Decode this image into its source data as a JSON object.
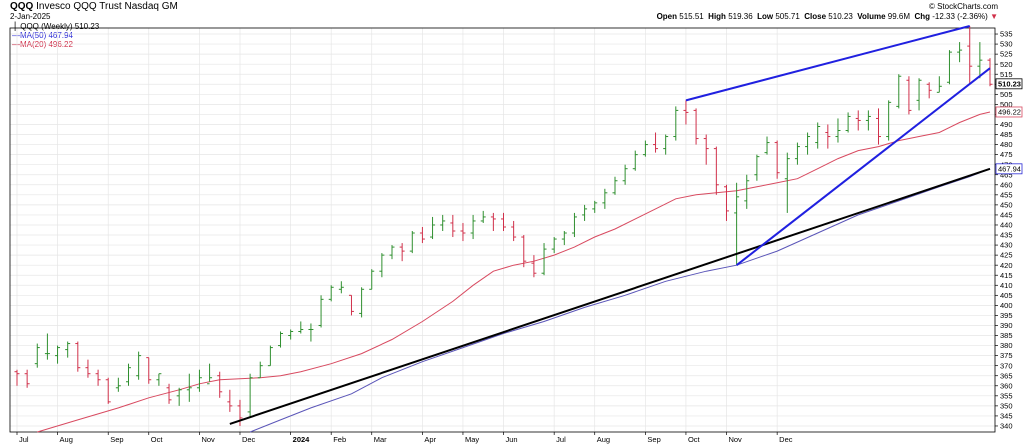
{
  "header": {
    "ticker": "QQQ",
    "name": "Invesco QQQ Trust Nasdaq GM",
    "date": "2-Jan-2025",
    "credit": "© StockCharts.com",
    "ohlc": {
      "open_label": "Open",
      "open": "515.51",
      "high_label": "High",
      "high": "519.36",
      "low_label": "Low",
      "low": "505.71",
      "close_label": "Close",
      "close": "510.23",
      "volume_label": "Volume",
      "volume": "99.6M",
      "chg_label": "Chg",
      "chg": "-12.33 (-2.36%)"
    }
  },
  "legend": {
    "price": "QQQ (Weekly) 510.23",
    "ma50": "MA(50) 467.94",
    "ma20": "MA(20) 496.22"
  },
  "colors": {
    "up": "#2f8f2f",
    "down": "#d0304a",
    "ma50": "#5a55b8",
    "ma20": "#d84a60",
    "trend_blue": "#2020e0",
    "trend_black": "#000000",
    "grid": "#e6e6e6"
  },
  "chart_data": {
    "type": "ohlc",
    "title": "QQQ Invesco QQQ Trust Nasdaq GM",
    "ylim": [
      337,
      538
    ],
    "y_ticks": [
      340,
      345,
      350,
      355,
      360,
      365,
      370,
      375,
      380,
      385,
      390,
      395,
      400,
      405,
      410,
      415,
      420,
      425,
      430,
      435,
      440,
      445,
      450,
      455,
      460,
      465,
      470,
      475,
      480,
      485,
      490,
      495,
      500,
      505,
      510,
      515,
      520,
      525,
      530,
      535
    ],
    "x_months": [
      "Jul",
      "Aug",
      "Sep",
      "Oct",
      "Nov",
      "Dec",
      "2024",
      "Feb",
      "Mar",
      "Apr",
      "May",
      "Jun",
      "Jul",
      "Aug",
      "Sep",
      "Oct",
      "Nov",
      "Dec"
    ],
    "price_labels": [
      {
        "value": 510.23,
        "text": "510.23",
        "style": "price"
      },
      {
        "value": 496.22,
        "text": "496.22",
        "style": "ma20"
      },
      {
        "value": 467.94,
        "text": "467.94",
        "style": "ma50"
      }
    ],
    "bars": [
      {
        "o": 367,
        "h": 368,
        "l": 360,
        "c": 366
      },
      {
        "o": 366,
        "h": 368,
        "l": 359,
        "c": 361
      },
      {
        "o": 371,
        "h": 381,
        "l": 369,
        "c": 379
      },
      {
        "o": 376,
        "h": 386,
        "l": 373,
        "c": 376
      },
      {
        "o": 375,
        "h": 380,
        "l": 371,
        "c": 379
      },
      {
        "o": 378,
        "h": 382,
        "l": 374,
        "c": 381
      },
      {
        "o": 381,
        "h": 382,
        "l": 367,
        "c": 369
      },
      {
        "o": 369,
        "h": 373,
        "l": 364,
        "c": 366
      },
      {
        "o": 366,
        "h": 368,
        "l": 360,
        "c": 363
      },
      {
        "o": 363,
        "h": 364,
        "l": 351,
        "c": 352
      },
      {
        "o": 359,
        "h": 364,
        "l": 357,
        "c": 360
      },
      {
        "o": 362,
        "h": 371,
        "l": 360,
        "c": 369
      },
      {
        "o": 365,
        "h": 377,
        "l": 363,
        "c": 375
      },
      {
        "o": 374,
        "h": 374,
        "l": 361,
        "c": 363
      },
      {
        "o": 363,
        "h": 366,
        "l": 360,
        "c": 366
      },
      {
        "o": 359,
        "h": 361,
        "l": 351,
        "c": 353
      },
      {
        "o": 355,
        "h": 359,
        "l": 350,
        "c": 358
      },
      {
        "o": 358,
        "h": 366,
        "l": 352,
        "c": 359
      },
      {
        "o": 359,
        "h": 368,
        "l": 357,
        "c": 364
      },
      {
        "o": 361,
        "h": 371,
        "l": 362,
        "c": 364
      },
      {
        "o": 365,
        "h": 367,
        "l": 354,
        "c": 357
      },
      {
        "o": 352,
        "h": 358,
        "l": 347,
        "c": 350
      },
      {
        "o": 350,
        "h": 353,
        "l": 340,
        "c": 344
      },
      {
        "o": 347,
        "h": 366,
        "l": 344,
        "c": 364
      },
      {
        "o": 364,
        "h": 372,
        "l": 364,
        "c": 370
      },
      {
        "o": 370,
        "h": 380,
        "l": 370,
        "c": 379
      },
      {
        "o": 380,
        "h": 387,
        "l": 379,
        "c": 386
      },
      {
        "o": 385,
        "h": 388,
        "l": 383,
        "c": 387
      },
      {
        "o": 387,
        "h": 392,
        "l": 386,
        "c": 388
      },
      {
        "o": 388,
        "h": 391,
        "l": 382,
        "c": 388
      },
      {
        "o": 390,
        "h": 405,
        "l": 389,
        "c": 403
      },
      {
        "o": 403,
        "h": 410,
        "l": 402,
        "c": 409
      },
      {
        "o": 408,
        "h": 412,
        "l": 406,
        "c": 409
      },
      {
        "o": 405,
        "h": 405,
        "l": 395,
        "c": 397
      },
      {
        "o": 396,
        "h": 409,
        "l": 394,
        "c": 408
      },
      {
        "o": 408,
        "h": 418,
        "l": 408,
        "c": 417
      },
      {
        "o": 417,
        "h": 426,
        "l": 414,
        "c": 425
      },
      {
        "o": 425,
        "h": 430,
        "l": 423,
        "c": 429
      },
      {
        "o": 429,
        "h": 431,
        "l": 422,
        "c": 427
      },
      {
        "o": 427,
        "h": 437,
        "l": 426,
        "c": 436
      },
      {
        "o": 436,
        "h": 439,
        "l": 431,
        "c": 433
      },
      {
        "o": 434,
        "h": 444,
        "l": 433,
        "c": 440
      },
      {
        "o": 440,
        "h": 445,
        "l": 437,
        "c": 442
      },
      {
        "o": 441,
        "h": 445,
        "l": 434,
        "c": 437
      },
      {
        "o": 437,
        "h": 441,
        "l": 432,
        "c": 436
      },
      {
        "o": 436,
        "h": 445,
        "l": 433,
        "c": 442
      },
      {
        "o": 442,
        "h": 447,
        "l": 441,
        "c": 444
      },
      {
        "o": 444,
        "h": 446,
        "l": 437,
        "c": 443
      },
      {
        "o": 443,
        "h": 446,
        "l": 437,
        "c": 439
      },
      {
        "o": 439,
        "h": 442,
        "l": 432,
        "c": 434
      },
      {
        "o": 434,
        "h": 435,
        "l": 419,
        "c": 422
      },
      {
        "o": 421,
        "h": 425,
        "l": 414,
        "c": 416
      },
      {
        "o": 416,
        "h": 431,
        "l": 415,
        "c": 428
      },
      {
        "o": 428,
        "h": 434,
        "l": 426,
        "c": 433
      },
      {
        "o": 433,
        "h": 437,
        "l": 430,
        "c": 436
      },
      {
        "o": 436,
        "h": 446,
        "l": 434,
        "c": 444
      },
      {
        "o": 445,
        "h": 450,
        "l": 442,
        "c": 448
      },
      {
        "o": 448,
        "h": 452,
        "l": 446,
        "c": 451
      },
      {
        "o": 451,
        "h": 458,
        "l": 448,
        "c": 456
      },
      {
        "o": 456,
        "h": 464,
        "l": 455,
        "c": 462
      },
      {
        "o": 462,
        "h": 470,
        "l": 460,
        "c": 468
      },
      {
        "o": 468,
        "h": 477,
        "l": 467,
        "c": 475
      },
      {
        "o": 475,
        "h": 482,
        "l": 474,
        "c": 480
      },
      {
        "o": 480,
        "h": 486,
        "l": 476,
        "c": 478
      },
      {
        "o": 478,
        "h": 485,
        "l": 475,
        "c": 484
      },
      {
        "o": 484,
        "h": 499,
        "l": 482,
        "c": 497
      },
      {
        "o": 497,
        "h": 502,
        "l": 490,
        "c": 496
      },
      {
        "o": 497,
        "h": 498,
        "l": 480,
        "c": 483
      },
      {
        "o": 483,
        "h": 485,
        "l": 470,
        "c": 478
      },
      {
        "o": 478,
        "h": 479,
        "l": 455,
        "c": 460
      },
      {
        "o": 459,
        "h": 460,
        "l": 442,
        "c": 447
      },
      {
        "o": 446,
        "h": 461,
        "l": 420,
        "c": 454
      },
      {
        "o": 452,
        "h": 465,
        "l": 448,
        "c": 462
      },
      {
        "o": 465,
        "h": 475,
        "l": 462,
        "c": 474
      },
      {
        "o": 476,
        "h": 484,
        "l": 475,
        "c": 481
      },
      {
        "o": 481,
        "h": 482,
        "l": 463,
        "c": 466
      },
      {
        "o": 463,
        "h": 476,
        "l": 446,
        "c": 473
      },
      {
        "o": 473,
        "h": 481,
        "l": 470,
        "c": 479
      },
      {
        "o": 479,
        "h": 486,
        "l": 475,
        "c": 484
      },
      {
        "o": 481,
        "h": 491,
        "l": 478,
        "c": 489
      },
      {
        "o": 486,
        "h": 490,
        "l": 478,
        "c": 484
      },
      {
        "o": 484,
        "h": 493,
        "l": 481,
        "c": 487
      },
      {
        "o": 487,
        "h": 496,
        "l": 486,
        "c": 494
      },
      {
        "o": 493,
        "h": 497,
        "l": 487,
        "c": 492
      },
      {
        "o": 492,
        "h": 497,
        "l": 487,
        "c": 494
      },
      {
        "o": 493,
        "h": 498,
        "l": 480,
        "c": 484
      },
      {
        "o": 484,
        "h": 502,
        "l": 482,
        "c": 501
      },
      {
        "o": 499,
        "h": 515,
        "l": 498,
        "c": 514
      },
      {
        "o": 512,
        "h": 514,
        "l": 495,
        "c": 497
      },
      {
        "o": 502,
        "h": 513,
        "l": 497,
        "c": 512
      },
      {
        "o": 510,
        "h": 511,
        "l": 503,
        "c": 507
      },
      {
        "o": 506,
        "h": 514,
        "l": 506,
        "c": 509
      },
      {
        "o": 511,
        "h": 527,
        "l": 510,
        "c": 526
      },
      {
        "o": 526,
        "h": 531,
        "l": 521,
        "c": 527
      },
      {
        "o": 529,
        "h": 539,
        "l": 510,
        "c": 519
      },
      {
        "o": 519,
        "h": 531,
        "l": 513,
        "c": 522
      },
      {
        "o": 522,
        "h": 523,
        "l": 509,
        "c": 510
      }
    ],
    "ma20": [
      {
        "i": 2,
        "v": 337
      },
      {
        "i": 6,
        "v": 343
      },
      {
        "i": 10,
        "v": 349
      },
      {
        "i": 13,
        "v": 354
      },
      {
        "i": 16,
        "v": 358
      },
      {
        "i": 18,
        "v": 361
      },
      {
        "i": 20,
        "v": 363
      },
      {
        "i": 22,
        "v": 363.5
      },
      {
        "i": 24,
        "v": 364
      },
      {
        "i": 26,
        "v": 365
      },
      {
        "i": 28,
        "v": 367
      },
      {
        "i": 31,
        "v": 371
      },
      {
        "i": 34,
        "v": 376
      },
      {
        "i": 37,
        "v": 383
      },
      {
        "i": 40,
        "v": 392
      },
      {
        "i": 43,
        "v": 402
      },
      {
        "i": 45,
        "v": 410
      },
      {
        "i": 47,
        "v": 417
      },
      {
        "i": 49,
        "v": 420
      },
      {
        "i": 51,
        "v": 422
      },
      {
        "i": 53,
        "v": 425
      },
      {
        "i": 55,
        "v": 429
      },
      {
        "i": 57,
        "v": 434
      },
      {
        "i": 59,
        "v": 438
      },
      {
        "i": 61,
        "v": 443
      },
      {
        "i": 63,
        "v": 448
      },
      {
        "i": 65,
        "v": 453
      },
      {
        "i": 67,
        "v": 455
      },
      {
        "i": 69,
        "v": 456
      },
      {
        "i": 71,
        "v": 457
      },
      {
        "i": 73,
        "v": 459
      },
      {
        "i": 75,
        "v": 461
      },
      {
        "i": 77,
        "v": 463
      },
      {
        "i": 79,
        "v": 468
      },
      {
        "i": 81,
        "v": 473
      },
      {
        "i": 83,
        "v": 477
      },
      {
        "i": 85,
        "v": 479
      },
      {
        "i": 87,
        "v": 482
      },
      {
        "i": 89,
        "v": 484
      },
      {
        "i": 91,
        "v": 486
      },
      {
        "i": 93,
        "v": 491
      },
      {
        "i": 95,
        "v": 495
      },
      {
        "i": 96,
        "v": 496.22
      }
    ],
    "ma50": [
      {
        "i": 23,
        "v": 337
      },
      {
        "i": 26,
        "v": 343
      },
      {
        "i": 29,
        "v": 349
      },
      {
        "i": 33,
        "v": 356
      },
      {
        "i": 36,
        "v": 364
      },
      {
        "i": 40,
        "v": 372
      },
      {
        "i": 44,
        "v": 379
      },
      {
        "i": 48,
        "v": 386
      },
      {
        "i": 52,
        "v": 392
      },
      {
        "i": 56,
        "v": 399
      },
      {
        "i": 60,
        "v": 405
      },
      {
        "i": 64,
        "v": 412
      },
      {
        "i": 68,
        "v": 417
      },
      {
        "i": 71,
        "v": 420
      },
      {
        "i": 75,
        "v": 427
      },
      {
        "i": 79,
        "v": 436
      },
      {
        "i": 83,
        "v": 445
      },
      {
        "i": 87,
        "v": 452
      },
      {
        "i": 91,
        "v": 459
      },
      {
        "i": 94,
        "v": 464
      },
      {
        "i": 96,
        "v": 467.94
      }
    ],
    "trendlines": [
      {
        "color": "black",
        "i1": 21,
        "v1": 341,
        "i2": 96,
        "v2": 467.94
      },
      {
        "color": "blue",
        "i1": 71,
        "v1": 420,
        "i2": 96,
        "v2": 518
      },
      {
        "color": "blue",
        "i1": 66,
        "v1": 502,
        "i2": 94,
        "v2": 539
      }
    ]
  }
}
